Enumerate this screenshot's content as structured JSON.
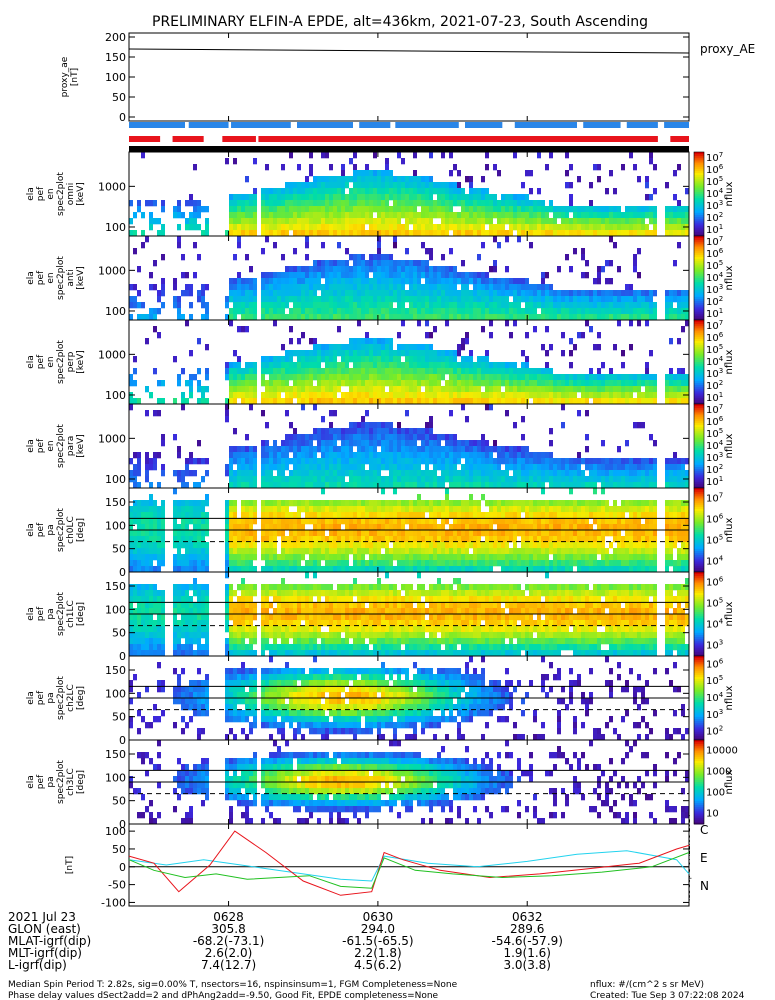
{
  "title": "PRELIMINARY ELFIN-A EPDE, alt=436km, 2021-07-23, South Ascending",
  "colors": {
    "red": "#e8141c",
    "blue": "#2a86e8",
    "cyan": "#22d3ee",
    "green": "#20c020",
    "black": "#000000"
  },
  "time_axis": {
    "start": "06:26:40",
    "end": "06:34:10",
    "tick_labels": [
      "0628",
      "0630",
      "0632"
    ],
    "tick_times": [
      "06:28:00",
      "06:30:00",
      "06:32:00"
    ]
  },
  "side_label": "Tue Sep  3 07:22:08 2024",
  "footer": {
    "rows": [
      {
        "label": "2021 Jul 23",
        "values": [
          "0628",
          "0630",
          "0632"
        ]
      },
      {
        "label": "GLON (east)",
        "values": [
          "305.8",
          "294.0",
          "289.6"
        ]
      },
      {
        "label": "MLAT-igrf(dip)",
        "values": [
          "-68.2(-73.1)",
          "-61.5(-65.5)",
          "-54.6(-57.9)"
        ]
      },
      {
        "label": "MLT-igrf(dip)",
        "values": [
          "2.6(2.0)",
          "2.2(1.8)",
          "1.9(1.6)"
        ]
      },
      {
        "label": "L-igrf(dip)",
        "values": [
          "7.4(12.7)",
          "4.5(6.2)",
          "3.0(3.8)"
        ]
      }
    ],
    "note1": "Median Spin Period T: 2.82s, sig=0.00% T, nsectors=16, nspinsinsum=1, FGM Completeness=None",
    "note2": "Phase delay values dSect2add=2 and dPhAng2add=-9.50, Good Fit, EPDE completeness=None",
    "units": "nflux: #/(cm^2 s sr MeV)",
    "created": "Created: Tue Sep  3 07:22:08 2024"
  },
  "chart_data": [
    {
      "type": "line",
      "panel": "proxy_ae",
      "ylabel_lines": [
        "proxy_ae",
        "[nT]"
      ],
      "yticks": [
        "200",
        "150",
        "100",
        "50",
        "0"
      ],
      "ylim": [
        -10,
        210
      ],
      "legend": "proxy_AE",
      "series": [
        {
          "name": "proxy_AE",
          "x": [
            "06:26:40",
            "06:34:10"
          ],
          "y": [
            170,
            160
          ]
        }
      ]
    },
    {
      "type": "bar",
      "panel": "status_bars",
      "blue_segments": [
        [
          "06:26:40",
          "06:27:25"
        ],
        [
          "06:27:28",
          "06:28:00"
        ],
        [
          "06:28:02",
          "06:28:50"
        ],
        [
          "06:28:55",
          "06:29:40"
        ],
        [
          "06:29:45",
          "06:30:10"
        ],
        [
          "06:30:14",
          "06:31:05"
        ],
        [
          "06:31:10",
          "06:31:40"
        ],
        [
          "06:31:50",
          "06:32:40"
        ],
        [
          "06:32:45",
          "06:33:15"
        ],
        [
          "06:33:20",
          "06:33:45"
        ],
        [
          "06:33:50",
          "06:34:10"
        ]
      ],
      "red_segments": [
        [
          "06:26:40",
          "06:27:05"
        ],
        [
          "06:27:15",
          "06:27:40"
        ],
        [
          "06:27:55",
          "06:28:22"
        ],
        [
          "06:28:24",
          "06:33:45"
        ],
        [
          "06:33:55",
          "06:34:10"
        ]
      ]
    },
    {
      "type": "heatmap",
      "panel": "pef_en_spec2plot_omni",
      "ylabel_lines": [
        "ela",
        "pef",
        "en",
        "spec2plot",
        "omni",
        "[keV]"
      ],
      "yticks": [
        "1000",
        "100"
      ],
      "scale": "log",
      "colorbar": {
        "label": "nflux",
        "ticks": [
          "10^1",
          "10^2",
          "10^3",
          "10^4",
          "10^5",
          "10^6",
          "10^7"
        ]
      }
    },
    {
      "type": "heatmap",
      "panel": "pef_en_spec2plot_anti",
      "ylabel_lines": [
        "ela",
        "pef",
        "en",
        "spec2plot",
        "anti",
        "[keV]"
      ],
      "yticks": [
        "1000",
        "100"
      ],
      "scale": "log",
      "colorbar": {
        "label": "nflux",
        "ticks": [
          "10^1",
          "10^2",
          "10^3",
          "10^4",
          "10^5",
          "10^6",
          "10^7"
        ]
      }
    },
    {
      "type": "heatmap",
      "panel": "pef_en_spec2plot_perp",
      "ylabel_lines": [
        "ela",
        "pef",
        "en",
        "spec2plot",
        "perp",
        "[keV]"
      ],
      "yticks": [
        "1000",
        "100"
      ],
      "scale": "log",
      "colorbar": {
        "label": "nflux",
        "ticks": [
          "10^1",
          "10^2",
          "10^3",
          "10^4",
          "10^5",
          "10^6",
          "10^7"
        ]
      }
    },
    {
      "type": "heatmap",
      "panel": "pef_en_spec2plot_para",
      "ylabel_lines": [
        "ela",
        "pef",
        "en",
        "spec2plot",
        "para",
        "[keV]"
      ],
      "yticks": [
        "1000",
        "100"
      ],
      "scale": "log",
      "colorbar": {
        "label": "nflux",
        "ticks": [
          "10^1",
          "10^2",
          "10^3",
          "10^4",
          "10^5",
          "10^6",
          "10^7"
        ]
      }
    },
    {
      "type": "heatmap",
      "panel": "pef_pa_spec2plot_ch0LC",
      "ylabel_lines": [
        "ela",
        "pef",
        "pa",
        "spec2plot",
        "ch0LC",
        "[deg]"
      ],
      "yticks": [
        "150",
        "100",
        "50",
        "0"
      ],
      "ylim": [
        0,
        180
      ],
      "colorbar": {
        "label": "nflux",
        "ticks": [
          "10^4",
          "10^5",
          "10^6",
          "10^7"
        ]
      }
    },
    {
      "type": "heatmap",
      "panel": "pef_pa_spec2plot_ch1LC",
      "ylabel_lines": [
        "ela",
        "pef",
        "pa",
        "spec2plot",
        "ch1LC",
        "[deg]"
      ],
      "yticks": [
        "150",
        "100",
        "50",
        "0"
      ],
      "ylim": [
        0,
        180
      ],
      "colorbar": {
        "label": "nflux",
        "ticks": [
          "10^3",
          "10^4",
          "10^5",
          "10^6"
        ]
      }
    },
    {
      "type": "heatmap",
      "panel": "pef_pa_spec2plot_ch2LC",
      "ylabel_lines": [
        "ela",
        "pef",
        "pa",
        "spec2plot",
        "ch2LC",
        "[deg]"
      ],
      "yticks": [
        "150",
        "100",
        "50",
        "0"
      ],
      "ylim": [
        0,
        180
      ],
      "colorbar": {
        "label": "nflux",
        "ticks": [
          "10^2",
          "10^3",
          "10^4",
          "10^5",
          "10^6"
        ]
      }
    },
    {
      "type": "heatmap",
      "panel": "pef_pa_spec2plot_ch3LC",
      "ylabel_lines": [
        "ela",
        "pef",
        "pa",
        "spec2plot",
        "ch3LC",
        "[deg]"
      ],
      "yticks": [
        "150",
        "100",
        "50",
        "0"
      ],
      "ylim": [
        0,
        180
      ],
      "colorbar": {
        "label": "nflux",
        "ticks": [
          "10",
          "100",
          "1000",
          "10000"
        ]
      }
    },
    {
      "type": "line",
      "panel": "dB_CEN",
      "ylabel_lines": [
        "[nT]"
      ],
      "yticks": [
        "100",
        "50",
        "0",
        "-50",
        "-100"
      ],
      "ylim": [
        -110,
        120
      ],
      "legend": [
        "C",
        "E",
        "N"
      ],
      "series": [
        {
          "name": "C",
          "x": [
            "06:26:40",
            "06:27:10",
            "06:27:40",
            "06:28:00",
            "06:28:30",
            "06:29:00",
            "06:29:30",
            "06:29:55",
            "06:30:05",
            "06:30:40",
            "06:31:20",
            "06:32:00",
            "06:32:40",
            "06:33:20",
            "06:34:00",
            "06:34:10"
          ],
          "y": [
            20,
            5,
            20,
            10,
            -5,
            -20,
            -35,
            -40,
            30,
            10,
            0,
            15,
            35,
            45,
            20,
            -20
          ]
        },
        {
          "name": "E",
          "x": [
            "06:26:40",
            "06:27:00",
            "06:27:20",
            "06:27:45",
            "06:28:05",
            "06:28:30",
            "06:29:00",
            "06:29:30",
            "06:29:55",
            "06:30:05",
            "06:30:20",
            "06:30:50",
            "06:31:30",
            "06:32:10",
            "06:32:50",
            "06:33:30",
            "06:34:00",
            "06:34:10"
          ],
          "y": [
            30,
            10,
            -70,
            5,
            100,
            40,
            -40,
            -80,
            -70,
            40,
            20,
            -10,
            -30,
            -20,
            -5,
            10,
            50,
            60
          ]
        },
        {
          "name": "N",
          "x": [
            "06:26:40",
            "06:27:00",
            "06:27:25",
            "06:27:50",
            "06:28:15",
            "06:28:40",
            "06:29:05",
            "06:29:30",
            "06:29:55",
            "06:30:05",
            "06:30:30",
            "06:31:00",
            "06:31:40",
            "06:32:20",
            "06:33:00",
            "06:33:40",
            "06:34:10"
          ],
          "y": [
            20,
            -10,
            -30,
            -20,
            -35,
            -30,
            -25,
            -55,
            -60,
            25,
            -10,
            -20,
            -30,
            -25,
            -15,
            0,
            40
          ]
        }
      ]
    }
  ]
}
